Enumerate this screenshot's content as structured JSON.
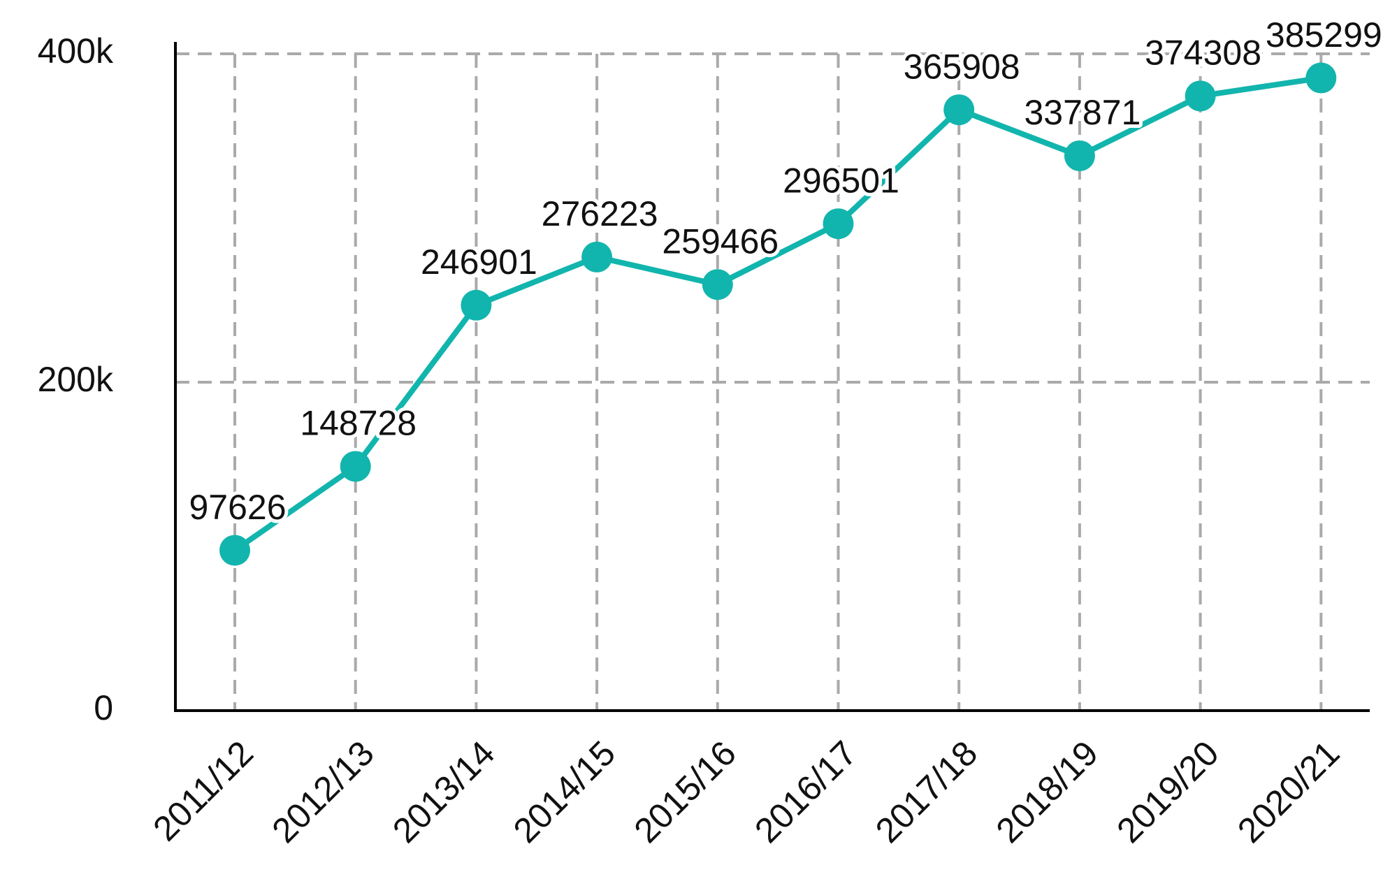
{
  "chart_data": {
    "type": "line",
    "categories": [
      "2011/12",
      "2012/13",
      "2013/14",
      "2014/15",
      "2015/16",
      "2016/17",
      "2017/18",
      "2018/19",
      "2019/20",
      "2020/21"
    ],
    "series": [
      {
        "color": "#12b5ad",
        "values": [
          97626,
          148728,
          246901,
          276223,
          259466,
          296501,
          365908,
          337871,
          374308,
          385299
        ]
      }
    ],
    "ylim": [
      0,
      400000
    ],
    "yticks": [
      0,
      {
        "value": 200000,
        "label": "200k"
      },
      {
        "value": 400000,
        "label": "400k"
      }
    ],
    "grid": true
  }
}
